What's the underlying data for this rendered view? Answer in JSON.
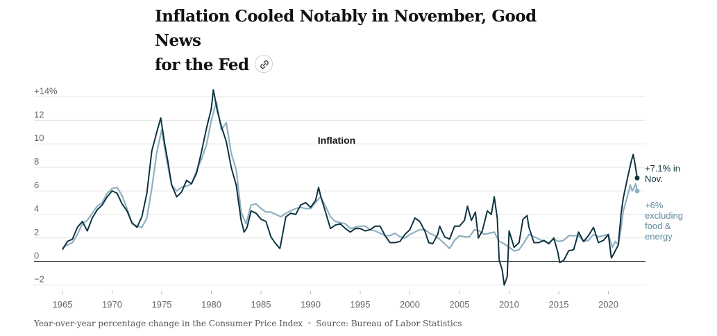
{
  "headline": {
    "line1": "Inflation Cooled Notably in November, Good News",
    "line2": "for the Fed"
  },
  "icons": {
    "share": "link-icon"
  },
  "footer": {
    "description": "Year-over-year percentage change in the Consumer Price Index",
    "source": "Source: Bureau of Labor Statistics"
  },
  "chart_data": {
    "type": "line",
    "title": "Inflation",
    "xlim": [
      1965,
      2022.9
    ],
    "ylim": [
      -2.5,
      14.5
    ],
    "x_ticks": [
      1965,
      1970,
      1975,
      1980,
      1985,
      1990,
      1995,
      2000,
      2005,
      2010,
      2015,
      2020
    ],
    "y_ticks": [
      -2,
      0,
      2,
      4,
      6,
      8,
      10,
      12,
      14
    ],
    "y_tick_labels": [
      "−2",
      "0",
      "2",
      "4",
      "6",
      "8",
      "10",
      "12",
      "+14%"
    ],
    "grid": "horizontal",
    "colors": {
      "headline": "#0d3340",
      "core": "#8fb0bf",
      "grid": "#e4e4e4",
      "zero": "#222222"
    },
    "series": [
      {
        "name": "CPI",
        "label_lines": [
          "+7.1% in",
          "Nov."
        ],
        "color": "#0d3340",
        "points": [
          [
            1965,
            1.0
          ],
          [
            1965.5,
            1.7
          ],
          [
            1966,
            1.9
          ],
          [
            1966.5,
            2.9
          ],
          [
            1967,
            3.4
          ],
          [
            1967.5,
            2.6
          ],
          [
            1968,
            3.7
          ],
          [
            1968.5,
            4.4
          ],
          [
            1969,
            4.8
          ],
          [
            1969.5,
            5.5
          ],
          [
            1970,
            6.0
          ],
          [
            1970.5,
            5.8
          ],
          [
            1971,
            4.9
          ],
          [
            1971.5,
            4.3
          ],
          [
            1972,
            3.3
          ],
          [
            1972.5,
            2.9
          ],
          [
            1973,
            3.8
          ],
          [
            1973.5,
            5.8
          ],
          [
            1974,
            9.4
          ],
          [
            1974.5,
            11.0
          ],
          [
            1974.9,
            12.2
          ],
          [
            1975.3,
            10.0
          ],
          [
            1975.6,
            8.6
          ],
          [
            1976,
            6.5
          ],
          [
            1976.5,
            5.5
          ],
          [
            1977,
            5.9
          ],
          [
            1977.5,
            6.9
          ],
          [
            1978,
            6.6
          ],
          [
            1978.5,
            7.5
          ],
          [
            1979,
            9.3
          ],
          [
            1979.5,
            11.3
          ],
          [
            1980,
            13.0
          ],
          [
            1980.2,
            14.6
          ],
          [
            1980.6,
            12.8
          ],
          [
            1981,
            11.5
          ],
          [
            1981.5,
            10.2
          ],
          [
            1982,
            8.0
          ],
          [
            1982.5,
            6.5
          ],
          [
            1983,
            3.5
          ],
          [
            1983.3,
            2.5
          ],
          [
            1983.6,
            2.9
          ],
          [
            1984,
            4.3
          ],
          [
            1984.5,
            4.1
          ],
          [
            1985,
            3.6
          ],
          [
            1985.5,
            3.4
          ],
          [
            1986,
            2.1
          ],
          [
            1986.4,
            1.6
          ],
          [
            1986.9,
            1.1
          ],
          [
            1987,
            1.5
          ],
          [
            1987.5,
            3.8
          ],
          [
            1988,
            4.1
          ],
          [
            1988.5,
            4.0
          ],
          [
            1989,
            4.8
          ],
          [
            1989.5,
            5.0
          ],
          [
            1990,
            4.6
          ],
          [
            1990.5,
            5.2
          ],
          [
            1990.8,
            6.3
          ],
          [
            1991,
            5.6
          ],
          [
            1991.5,
            4.2
          ],
          [
            1992,
            2.8
          ],
          [
            1992.5,
            3.1
          ],
          [
            1993,
            3.2
          ],
          [
            1993.5,
            2.8
          ],
          [
            1994,
            2.5
          ],
          [
            1994.5,
            2.8
          ],
          [
            1995,
            2.8
          ],
          [
            1995.5,
            2.6
          ],
          [
            1996,
            2.7
          ],
          [
            1996.5,
            3.0
          ],
          [
            1997,
            3.0
          ],
          [
            1997.5,
            2.2
          ],
          [
            1998,
            1.6
          ],
          [
            1998.5,
            1.6
          ],
          [
            1999,
            1.7
          ],
          [
            1999.5,
            2.3
          ],
          [
            2000,
            2.7
          ],
          [
            2000.5,
            3.7
          ],
          [
            2001,
            3.4
          ],
          [
            2001.5,
            2.6
          ],
          [
            2001.9,
            1.6
          ],
          [
            2002.3,
            1.5
          ],
          [
            2002.8,
            2.3
          ],
          [
            2003,
            3.0
          ],
          [
            2003.5,
            2.1
          ],
          [
            2004,
            1.9
          ],
          [
            2004.5,
            3.0
          ],
          [
            2005,
            3.0
          ],
          [
            2005.5,
            3.5
          ],
          [
            2005.8,
            4.7
          ],
          [
            2006.2,
            3.5
          ],
          [
            2006.6,
            4.2
          ],
          [
            2006.9,
            2.0
          ],
          [
            2007.3,
            2.6
          ],
          [
            2007.8,
            4.3
          ],
          [
            2008.2,
            4.0
          ],
          [
            2008.5,
            5.5
          ],
          [
            2008.8,
            3.7
          ],
          [
            2009,
            0.1
          ],
          [
            2009.3,
            -0.7
          ],
          [
            2009.5,
            -2.0
          ],
          [
            2009.8,
            -1.3
          ],
          [
            2010,
            2.6
          ],
          [
            2010.5,
            1.2
          ],
          [
            2011,
            1.6
          ],
          [
            2011.4,
            3.6
          ],
          [
            2011.8,
            3.9
          ],
          [
            2012,
            2.9
          ],
          [
            2012.5,
            1.6
          ],
          [
            2013,
            1.6
          ],
          [
            2013.5,
            1.8
          ],
          [
            2014,
            1.5
          ],
          [
            2014.5,
            2.0
          ],
          [
            2014.9,
            0.8
          ],
          [
            2015.1,
            -0.1
          ],
          [
            2015.5,
            0.1
          ],
          [
            2016,
            0.9
          ],
          [
            2016.5,
            1.0
          ],
          [
            2017,
            2.5
          ],
          [
            2017.5,
            1.7
          ],
          [
            2018,
            2.2
          ],
          [
            2018.5,
            2.9
          ],
          [
            2019,
            1.6
          ],
          [
            2019.5,
            1.8
          ],
          [
            2020,
            2.3
          ],
          [
            2020.3,
            0.3
          ],
          [
            2020.5,
            0.6
          ],
          [
            2021,
            1.4
          ],
          [
            2021.3,
            4.2
          ],
          [
            2021.5,
            5.4
          ],
          [
            2021.9,
            7.0
          ],
          [
            2022.3,
            8.5
          ],
          [
            2022.5,
            9.1
          ],
          [
            2022.7,
            8.2
          ],
          [
            2022.9,
            7.1
          ]
        ]
      },
      {
        "name": "Core CPI",
        "label_lines": [
          "+6%",
          "excluding",
          "food &",
          "energy"
        ],
        "color": "#8fb0bf",
        "points": [
          [
            1965,
            1.2
          ],
          [
            1965.5,
            1.4
          ],
          [
            1966,
            1.6
          ],
          [
            1966.5,
            2.3
          ],
          [
            1967,
            3.2
          ],
          [
            1967.5,
            3.5
          ],
          [
            1968,
            4.1
          ],
          [
            1968.5,
            4.7
          ],
          [
            1969,
            5.0
          ],
          [
            1969.5,
            5.8
          ],
          [
            1970,
            6.2
          ],
          [
            1970.5,
            6.3
          ],
          [
            1971,
            5.6
          ],
          [
            1971.5,
            4.5
          ],
          [
            1972,
            3.2
          ],
          [
            1972.5,
            3.0
          ],
          [
            1973,
            2.9
          ],
          [
            1973.5,
            3.7
          ],
          [
            1974,
            6.2
          ],
          [
            1974.5,
            9.3
          ],
          [
            1975,
            11.2
          ],
          [
            1975.5,
            8.6
          ],
          [
            1976,
            6.5
          ],
          [
            1976.5,
            6.0
          ],
          [
            1977,
            6.3
          ],
          [
            1977.5,
            6.4
          ],
          [
            1978,
            6.6
          ],
          [
            1978.5,
            7.7
          ],
          [
            1979,
            8.7
          ],
          [
            1979.5,
            9.9
          ],
          [
            1980,
            12.0
          ],
          [
            1980.5,
            13.6
          ],
          [
            1981,
            11.2
          ],
          [
            1981.5,
            11.8
          ],
          [
            1982,
            9.2
          ],
          [
            1982.5,
            7.8
          ],
          [
            1983,
            4.2
          ],
          [
            1983.5,
            3.2
          ],
          [
            1984,
            4.8
          ],
          [
            1984.5,
            4.9
          ],
          [
            1985,
            4.5
          ],
          [
            1985.5,
            4.2
          ],
          [
            1986,
            4.2
          ],
          [
            1986.5,
            4.0
          ],
          [
            1987,
            3.8
          ],
          [
            1987.5,
            4.1
          ],
          [
            1988,
            4.3
          ],
          [
            1988.5,
            4.5
          ],
          [
            1989,
            4.6
          ],
          [
            1989.5,
            4.5
          ],
          [
            1990,
            4.5
          ],
          [
            1990.5,
            5.0
          ],
          [
            1991,
            5.5
          ],
          [
            1991.5,
            4.7
          ],
          [
            1992,
            3.8
          ],
          [
            1992.5,
            3.4
          ],
          [
            1993,
            3.3
          ],
          [
            1993.5,
            3.2
          ],
          [
            1994,
            2.8
          ],
          [
            1994.5,
            2.9
          ],
          [
            1995,
            3.0
          ],
          [
            1995.5,
            3.0
          ],
          [
            1996,
            2.7
          ],
          [
            1996.5,
            2.6
          ],
          [
            1997,
            2.4
          ],
          [
            1997.5,
            2.2
          ],
          [
            1998,
            2.2
          ],
          [
            1998.5,
            2.4
          ],
          [
            1999,
            2.1
          ],
          [
            1999.5,
            2.0
          ],
          [
            2000,
            2.3
          ],
          [
            2000.5,
            2.5
          ],
          [
            2001,
            2.7
          ],
          [
            2001.5,
            2.7
          ],
          [
            2002,
            2.4
          ],
          [
            2002.5,
            2.2
          ],
          [
            2003,
            1.9
          ],
          [
            2003.5,
            1.5
          ],
          [
            2004,
            1.1
          ],
          [
            2004.5,
            1.8
          ],
          [
            2005,
            2.2
          ],
          [
            2005.5,
            2.1
          ],
          [
            2006,
            2.1
          ],
          [
            2006.5,
            2.7
          ],
          [
            2007,
            2.6
          ],
          [
            2007.5,
            2.3
          ],
          [
            2008,
            2.4
          ],
          [
            2008.5,
            2.5
          ],
          [
            2009,
            1.7
          ],
          [
            2009.5,
            1.5
          ],
          [
            2010,
            1.2
          ],
          [
            2010.5,
            0.9
          ],
          [
            2011,
            1.0
          ],
          [
            2011.5,
            1.6
          ],
          [
            2012,
            2.3
          ],
          [
            2012.5,
            2.1
          ],
          [
            2013,
            1.9
          ],
          [
            2013.5,
            1.7
          ],
          [
            2014,
            1.6
          ],
          [
            2014.5,
            1.9
          ],
          [
            2015,
            1.7
          ],
          [
            2015.5,
            1.8
          ],
          [
            2016,
            2.2
          ],
          [
            2016.5,
            2.2
          ],
          [
            2017,
            2.2
          ],
          [
            2017.5,
            1.7
          ],
          [
            2018,
            1.8
          ],
          [
            2018.5,
            2.3
          ],
          [
            2019,
            2.1
          ],
          [
            2019.5,
            2.2
          ],
          [
            2020,
            2.3
          ],
          [
            2020.4,
            1.2
          ],
          [
            2020.7,
            1.7
          ],
          [
            2021,
            1.4
          ],
          [
            2021.3,
            3.0
          ],
          [
            2021.5,
            4.3
          ],
          [
            2021.9,
            5.5
          ],
          [
            2022.2,
            6.5
          ],
          [
            2022.4,
            6.0
          ],
          [
            2022.6,
            6.3
          ],
          [
            2022.75,
            6.6
          ],
          [
            2022.9,
            6.0
          ]
        ]
      }
    ]
  }
}
